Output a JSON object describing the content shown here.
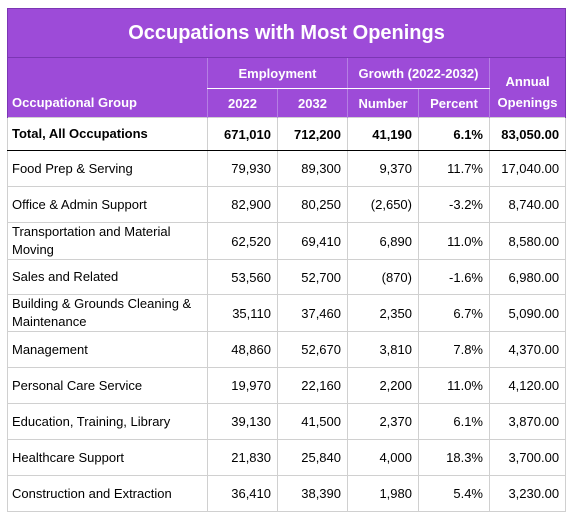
{
  "title": "Occupations with Most Openings",
  "headers": {
    "employment": "Employment",
    "growth": "Growth (2022-2032)",
    "annual_line1": "Annual",
    "annual_line2": "Openings",
    "group": "Occupational Group",
    "y2022": "2022",
    "y2032": "2032",
    "number": "Number",
    "percent": "Percent"
  },
  "rows": [
    {
      "group": "Total, All Occupations",
      "e2022": "671,010",
      "e2032": "712,200",
      "number": "41,190",
      "percent": "6.1%",
      "openings": "83,050.00"
    },
    {
      "group": "Food Prep & Serving",
      "e2022": "79,930",
      "e2032": "89,300",
      "number": "9,370",
      "percent": "11.7%",
      "openings": "17,040.00"
    },
    {
      "group": "Office & Admin Support",
      "e2022": "82,900",
      "e2032": "80,250",
      "number": "(2,650)",
      "percent": "-3.2%",
      "openings": "8,740.00"
    },
    {
      "group": "Transportation and Material Moving",
      "e2022": "62,520",
      "e2032": "69,410",
      "number": "6,890",
      "percent": "11.0%",
      "openings": "8,580.00"
    },
    {
      "group": "Sales and Related",
      "e2022": "53,560",
      "e2032": "52,700",
      "number": "(870)",
      "percent": "-1.6%",
      "openings": "6,980.00"
    },
    {
      "group": "Building & Grounds Cleaning & Maintenance",
      "e2022": "35,110",
      "e2032": "37,460",
      "number": "2,350",
      "percent": "6.7%",
      "openings": "5,090.00"
    },
    {
      "group": "Management",
      "e2022": "48,860",
      "e2032": "52,670",
      "number": "3,810",
      "percent": "7.8%",
      "openings": "4,370.00"
    },
    {
      "group": "Personal Care Service",
      "e2022": "19,970",
      "e2032": "22,160",
      "number": "2,200",
      "percent": "11.0%",
      "openings": "4,120.00"
    },
    {
      "group": "Education, Training, Library",
      "e2022": "39,130",
      "e2032": "41,500",
      "number": "2,370",
      "percent": "6.1%",
      "openings": "3,870.00"
    },
    {
      "group": "Healthcare Support",
      "e2022": "21,830",
      "e2032": "25,840",
      "number": "4,000",
      "percent": "18.3%",
      "openings": "3,700.00"
    },
    {
      "group": "Construction and Extraction",
      "e2022": "36,410",
      "e2032": "38,390",
      "number": "1,980",
      "percent": "5.4%",
      "openings": "3,230.00"
    }
  ]
}
